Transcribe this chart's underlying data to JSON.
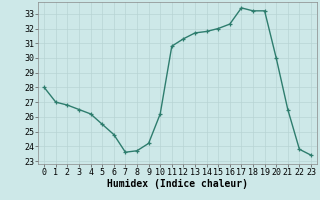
{
  "x": [
    0,
    1,
    2,
    3,
    4,
    5,
    6,
    7,
    8,
    9,
    10,
    11,
    12,
    13,
    14,
    15,
    16,
    17,
    18,
    19,
    20,
    21,
    22,
    23
  ],
  "y": [
    28.0,
    27.0,
    26.8,
    26.5,
    26.2,
    25.5,
    24.8,
    23.6,
    23.7,
    24.2,
    26.2,
    30.8,
    31.3,
    31.7,
    31.8,
    32.0,
    32.3,
    33.4,
    33.2,
    33.2,
    30.0,
    26.5,
    23.8,
    23.4
  ],
  "xlabel": "Humidex (Indice chaleur)",
  "ylim_min": 22.8,
  "ylim_max": 33.8,
  "xlim_min": -0.5,
  "xlim_max": 23.5,
  "yticks": [
    23,
    24,
    25,
    26,
    27,
    28,
    29,
    30,
    31,
    32,
    33
  ],
  "xticks": [
    0,
    1,
    2,
    3,
    4,
    5,
    6,
    7,
    8,
    9,
    10,
    11,
    12,
    13,
    14,
    15,
    16,
    17,
    18,
    19,
    20,
    21,
    22,
    23
  ],
  "line_color": "#2e7d6e",
  "marker": "+",
  "bg_color": "#cde8e8",
  "grid_color": "#b8d4d4",
  "label_fontsize": 7,
  "tick_fontsize": 6
}
